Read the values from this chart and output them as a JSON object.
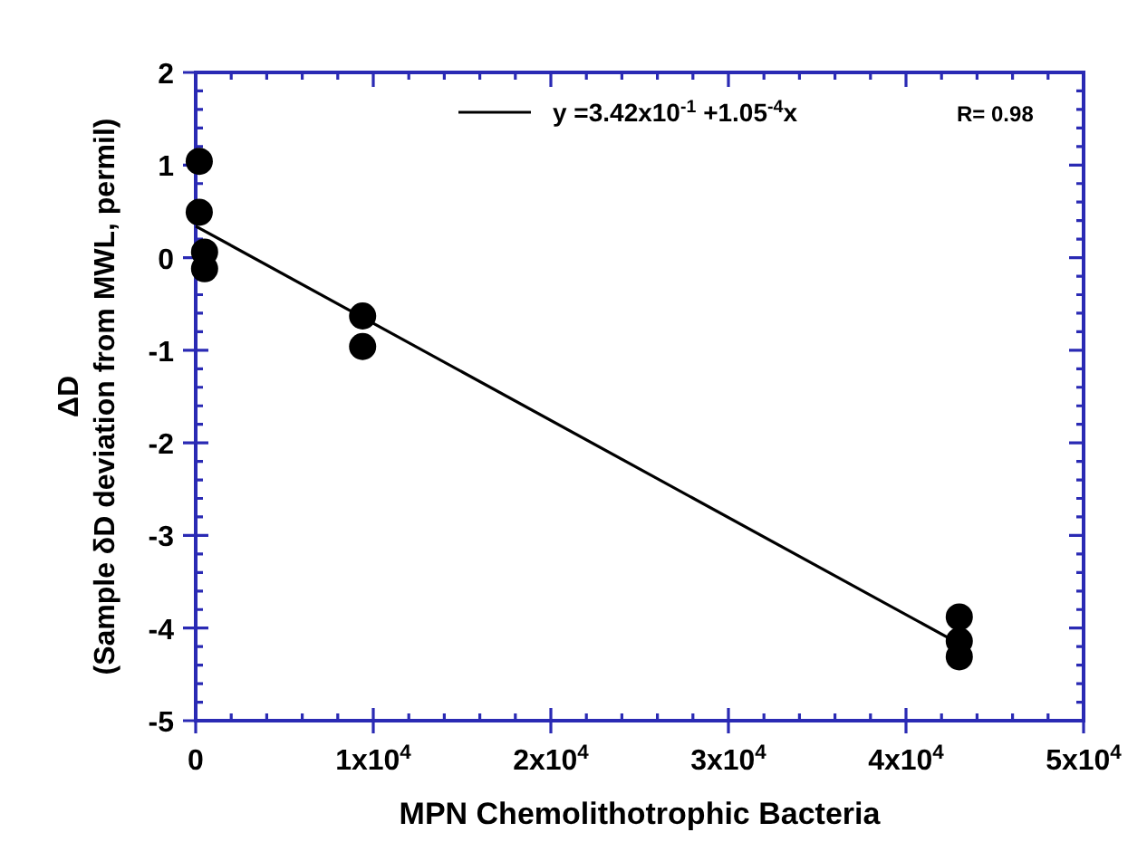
{
  "chart_data": {
    "type": "scatter",
    "xlabel": "MPN Chemolithotrophic Bacteria",
    "ylabel": "ΔD\n(Sample δD deviation from MWL, permil)",
    "xlim": [
      0,
      50000
    ],
    "ylim": [
      -5,
      2
    ],
    "xticks": [
      0,
      {
        "value": 10000,
        "label": "1x10$^{4}$"
      },
      {
        "value": 20000,
        "label": "2x10$^{4}$"
      },
      {
        "value": 30000,
        "label": "3x10$^{4}$"
      },
      {
        "value": 40000,
        "label": "4x10$^{4}$"
      },
      {
        "value": 50000,
        "label": "5x10$^{4}$"
      }
    ],
    "yticks": [
      -5,
      -4,
      -3,
      -2,
      -1,
      0,
      1,
      2
    ],
    "series": [
      {
        "color": "#000000",
        "marker": "circle",
        "x": [
          200,
          200,
          500,
          500,
          9400,
          9400,
          43000,
          43000,
          43000
        ],
        "values": [
          1.04,
          0.49,
          0.06,
          -0.12,
          -0.63,
          -0.96,
          -3.88,
          -4.14,
          -4.31
        ]
      },
      {
        "type": "line",
        "name": "y =3.42x10$^{-1}$ +1.05$^{-4}$x",
        "color": "#000000",
        "line_style": "solid",
        "x": [
          0,
          43000
        ],
        "values": [
          0.34,
          -4.17
        ]
      }
    ],
    "annotations": [
      "R= 0.98"
    ],
    "legend": "top right",
    "grid": false
  }
}
